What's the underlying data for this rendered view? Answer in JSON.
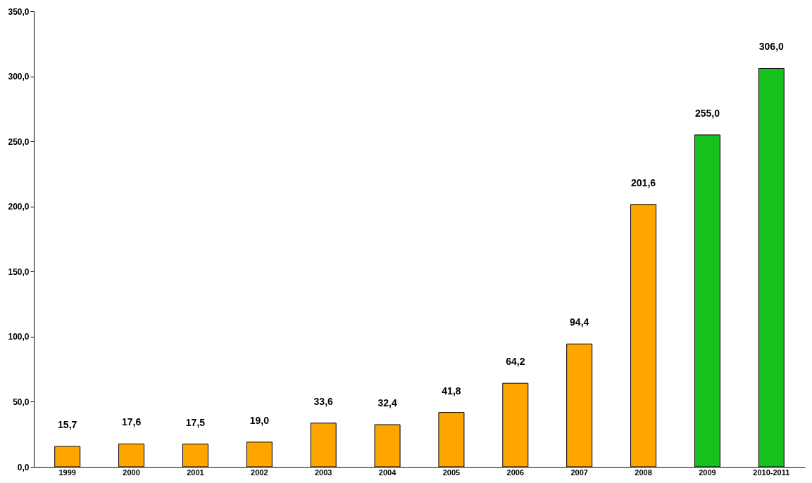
{
  "chart_data": {
    "type": "bar",
    "categories": [
      "1999",
      "2000",
      "2001",
      "2002",
      "2003",
      "2004",
      "2005",
      "2006",
      "2007",
      "2008",
      "2009",
      "2010-2011"
    ],
    "values": [
      15.7,
      17.6,
      17.5,
      19.0,
      33.6,
      32.4,
      41.8,
      64.2,
      94.4,
      201.6,
      255.0,
      306.0
    ],
    "colors": [
      "#ffa500",
      "#ffa500",
      "#ffa500",
      "#ffa500",
      "#ffa500",
      "#ffa500",
      "#ffa500",
      "#ffa500",
      "#ffa500",
      "#ffa500",
      "#16c01d",
      "#16c01d"
    ],
    "value_labels": [
      "15,7",
      "17,6",
      "17,5",
      "19,0",
      "33,6",
      "32,4",
      "41,8",
      "64,2",
      "94,4",
      "201,6",
      "255,0",
      "306,0"
    ],
    "ylim": [
      0,
      350
    ],
    "yticks": [
      {
        "value": 0,
        "label": "0,0"
      },
      {
        "value": 50,
        "label": "50,0"
      },
      {
        "value": 100,
        "label": "100,0"
      },
      {
        "value": 150,
        "label": "150,0"
      },
      {
        "value": 200,
        "label": "200,0"
      },
      {
        "value": 250,
        "label": "250,0"
      },
      {
        "value": 300,
        "label": "300,0"
      },
      {
        "value": 350,
        "label": "350,0"
      }
    ],
    "grid": false
  }
}
